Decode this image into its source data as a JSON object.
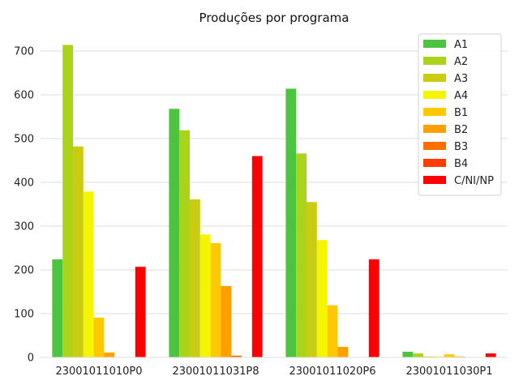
{
  "chart_data": {
    "type": "bar",
    "title": "Produções por programa",
    "xlabel": "",
    "ylabel": "",
    "categories": [
      "23001011010P0",
      "23001011031P8",
      "23001011020P6",
      "23001011030P1"
    ],
    "ylim": [
      0,
      750
    ],
    "yticks": [
      0,
      100,
      200,
      300,
      400,
      500,
      600,
      700
    ],
    "grid": "horizontal",
    "legend_position": "top-right",
    "series": [
      {
        "name": "A1",
        "color": "#4dc43f",
        "values": [
          224,
          568,
          614,
          13
        ]
      },
      {
        "name": "A2",
        "color": "#abd31a",
        "values": [
          714,
          519,
          466,
          9
        ]
      },
      {
        "name": "A3",
        "color": "#c9cc12",
        "values": [
          482,
          361,
          355,
          2
        ]
      },
      {
        "name": "A4",
        "color": "#f5f500",
        "values": [
          379,
          281,
          268,
          2
        ]
      },
      {
        "name": "B1",
        "color": "#ffc800",
        "values": [
          91,
          261,
          119,
          7
        ]
      },
      {
        "name": "B2",
        "color": "#ffa000",
        "values": [
          11,
          163,
          24,
          2
        ]
      },
      {
        "name": "B3",
        "color": "#ff6e00",
        "values": [
          0,
          4,
          0,
          0
        ]
      },
      {
        "name": "B4",
        "color": "#ff3c00",
        "values": [
          0,
          0,
          0,
          0
        ]
      },
      {
        "name": "C/NI/NP",
        "color": "#ff0000",
        "values": [
          207,
          460,
          224,
          9
        ]
      }
    ]
  }
}
